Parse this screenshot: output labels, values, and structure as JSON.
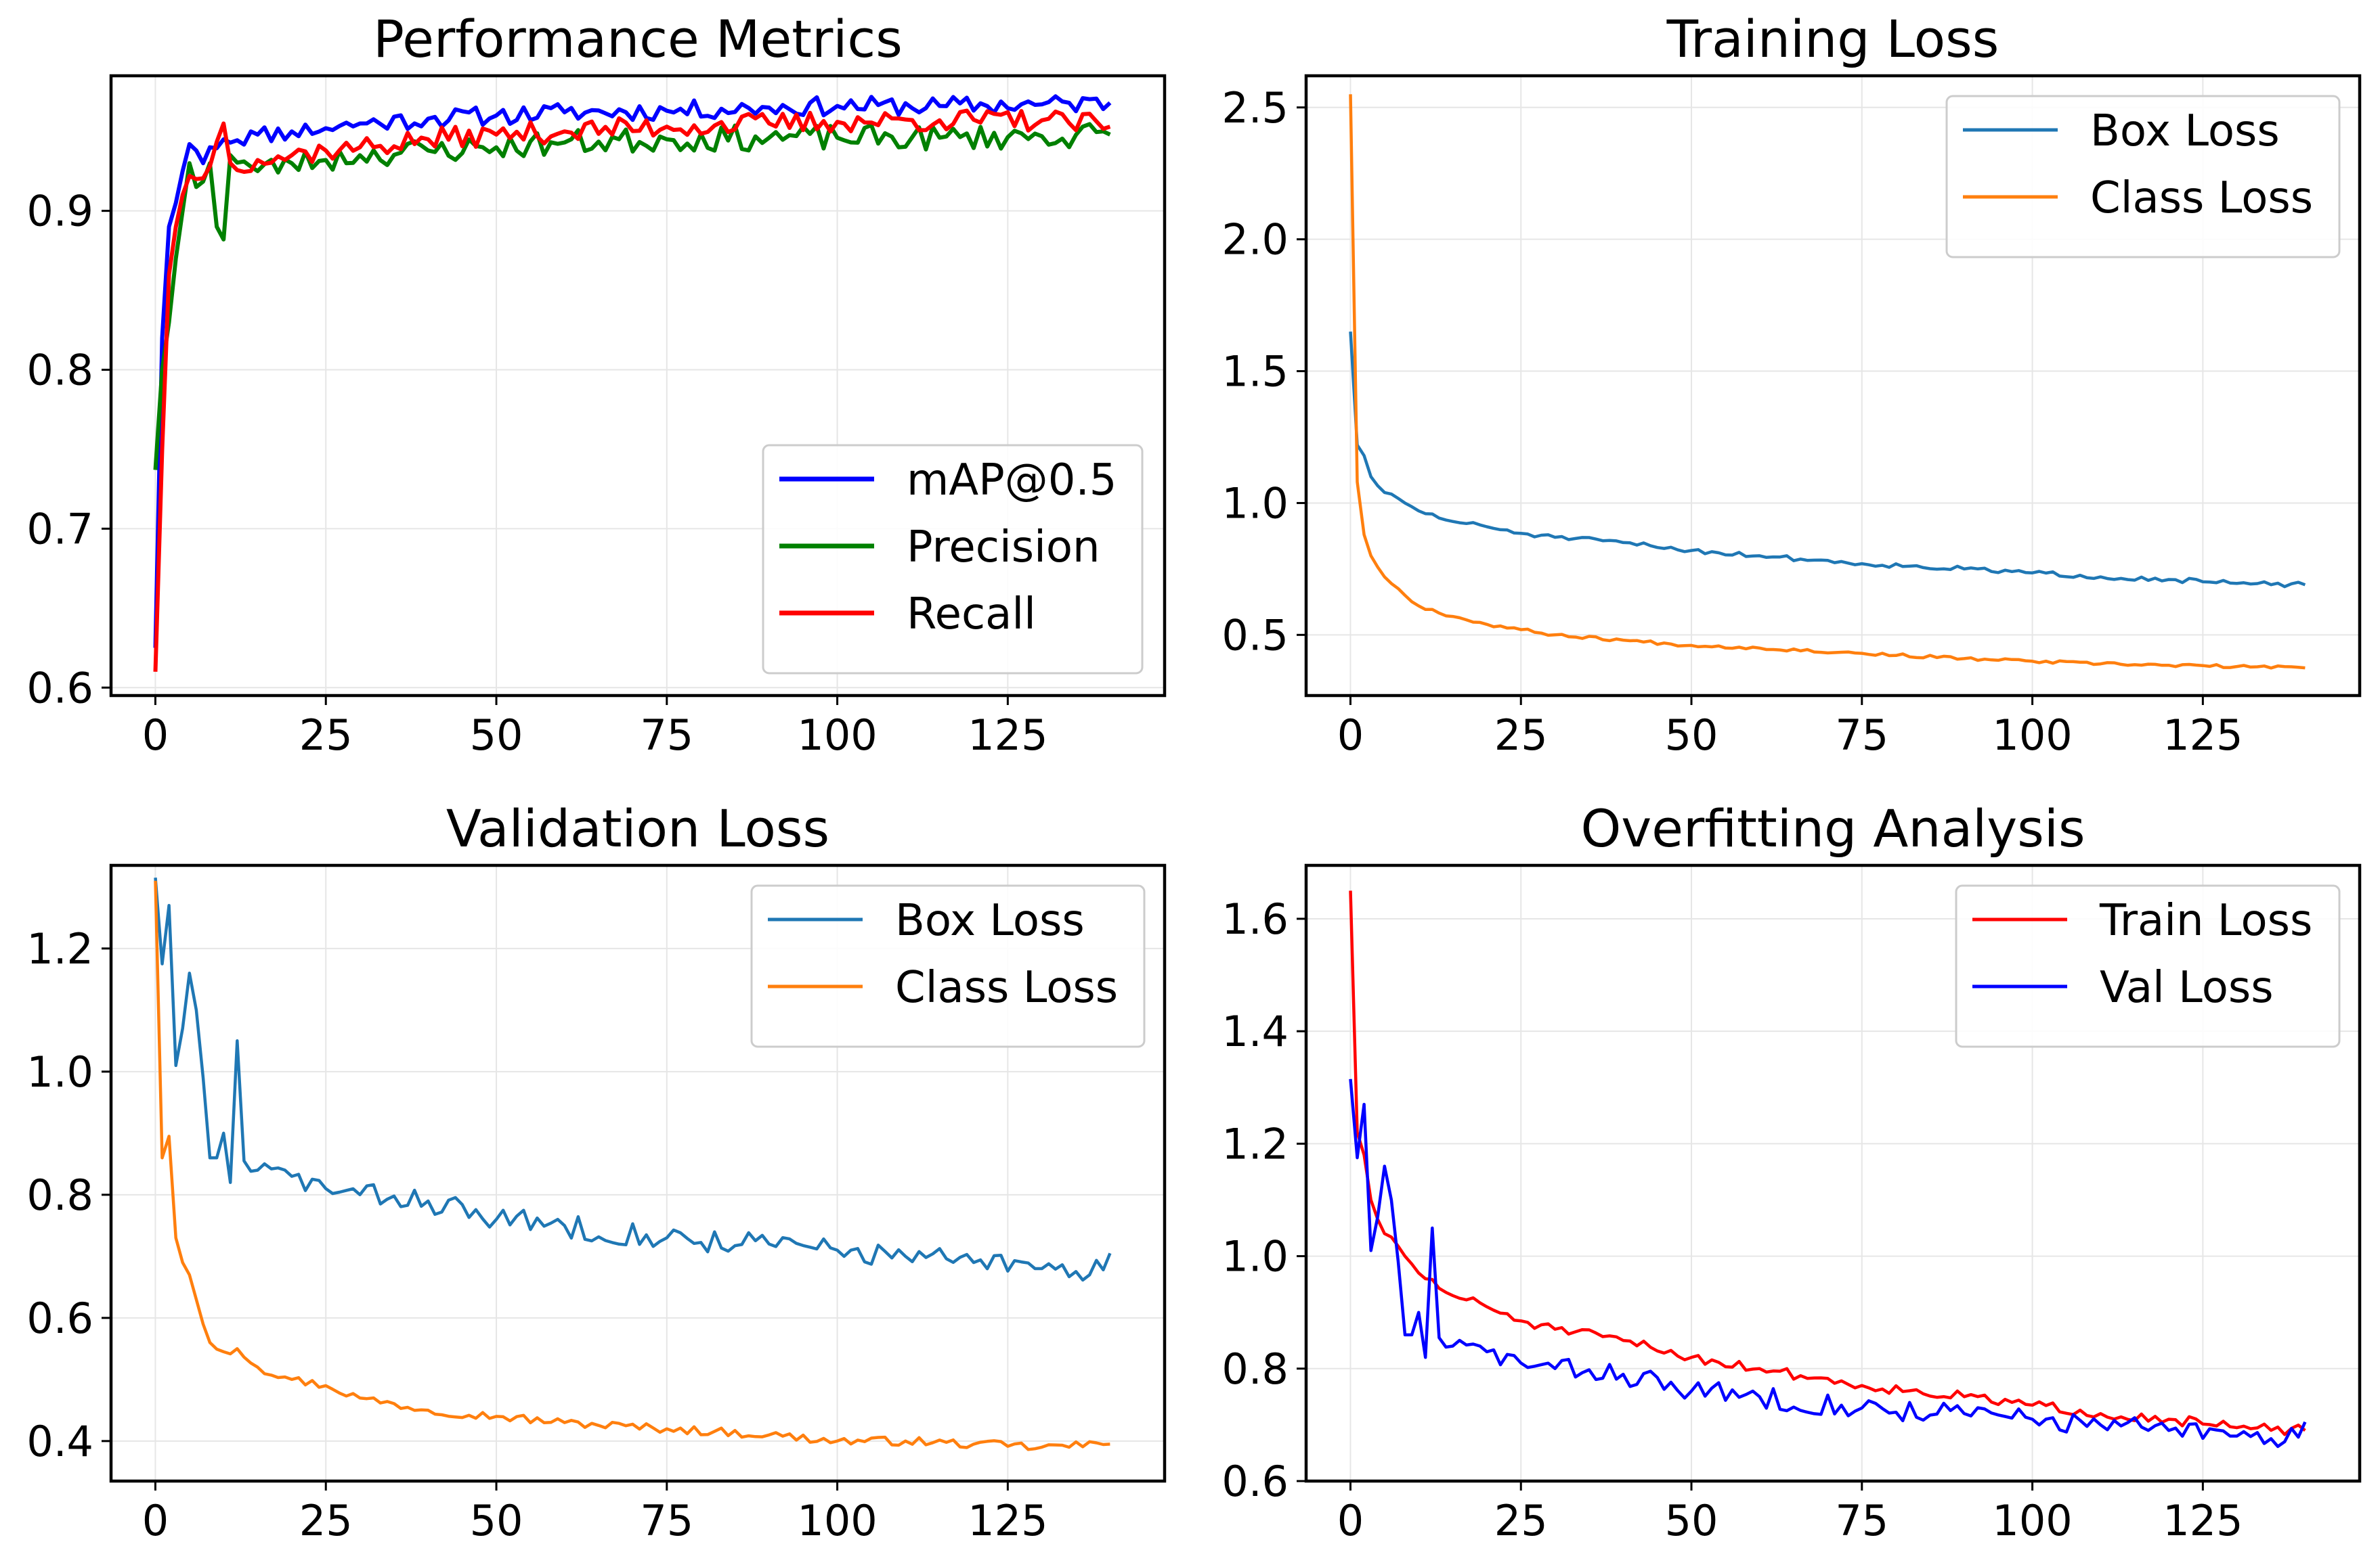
{
  "chart_data": [
    {
      "type": "line",
      "title": "Performance Metrics",
      "xlabel": "",
      "ylabel": "",
      "xlim": [
        -6.5,
        148
      ],
      "ylim": [
        0.595,
        0.985
      ],
      "xticks": [
        0,
        25,
        50,
        75,
        100,
        125
      ],
      "yticks": [
        0.6,
        0.7,
        0.8,
        0.9
      ],
      "tick_labels_y": [
        "0.6",
        "0.7",
        "0.8",
        "0.9"
      ],
      "grid": true,
      "legend_position": "lower-right",
      "series": [
        {
          "name": "mAP@0.5",
          "color": "#0000ff",
          "keypoints": [
            [
              0,
              0.625
            ],
            [
              1,
              0.82
            ],
            [
              2,
              0.89
            ],
            [
              3,
              0.905
            ],
            [
              4,
              0.925
            ],
            [
              5,
              0.942
            ],
            [
              6,
              0.938
            ],
            [
              7,
              0.93
            ],
            [
              8,
              0.94
            ],
            [
              10,
              0.945
            ],
            [
              15,
              0.948
            ],
            [
              20,
              0.95
            ],
            [
              25,
              0.952
            ],
            [
              30,
              0.955
            ],
            [
              40,
              0.958
            ],
            [
              50,
              0.96
            ],
            [
              60,
              0.962
            ],
            [
              75,
              0.963
            ],
            [
              90,
              0.965
            ],
            [
              100,
              0.966
            ],
            [
              115,
              0.966
            ],
            [
              130,
              0.967
            ],
            [
              140,
              0.968
            ]
          ],
          "noise": 0.006,
          "seed": 11
        },
        {
          "name": "Precision",
          "color": "#008000",
          "keypoints": [
            [
              0,
              0.737
            ],
            [
              1,
              0.8
            ],
            [
              2,
              0.83
            ],
            [
              3,
              0.87
            ],
            [
              4,
              0.9
            ],
            [
              5,
              0.93
            ],
            [
              6,
              0.915
            ],
            [
              8,
              0.93
            ],
            [
              9,
              0.89
            ],
            [
              10,
              0.882
            ],
            [
              11,
              0.935
            ],
            [
              15,
              0.925
            ],
            [
              20,
              0.93
            ],
            [
              25,
              0.932
            ],
            [
              30,
              0.935
            ],
            [
              40,
              0.938
            ],
            [
              50,
              0.94
            ],
            [
              60,
              0.943
            ],
            [
              75,
              0.945
            ],
            [
              90,
              0.946
            ],
            [
              100,
              0.946
            ],
            [
              115,
              0.946
            ],
            [
              130,
              0.947
            ],
            [
              140,
              0.948
            ]
          ],
          "noise": 0.008,
          "seed": 23
        },
        {
          "name": "Recall",
          "color": "#ff0000",
          "keypoints": [
            [
              0,
              0.61
            ],
            [
              1,
              0.75
            ],
            [
              2,
              0.86
            ],
            [
              3,
              0.89
            ],
            [
              4,
              0.91
            ],
            [
              5,
              0.922
            ],
            [
              6,
              0.92
            ],
            [
              8,
              0.928
            ],
            [
              10,
              0.955
            ],
            [
              11,
              0.93
            ],
            [
              15,
              0.932
            ],
            [
              20,
              0.935
            ],
            [
              25,
              0.938
            ],
            [
              30,
              0.94
            ],
            [
              40,
              0.945
            ],
            [
              50,
              0.948
            ],
            [
              60,
              0.95
            ],
            [
              75,
              0.953
            ],
            [
              90,
              0.955
            ],
            [
              100,
              0.956
            ],
            [
              115,
              0.957
            ],
            [
              130,
              0.957
            ],
            [
              140,
              0.953
            ]
          ],
          "noise": 0.007,
          "seed": 37
        }
      ]
    },
    {
      "type": "line",
      "title": "Training Loss",
      "xlabel": "",
      "ylabel": "",
      "xlim": [
        -6.5,
        148
      ],
      "ylim": [
        0.27,
        2.62
      ],
      "xticks": [
        0,
        25,
        50,
        75,
        100,
        125
      ],
      "yticks": [
        0.5,
        1.0,
        1.5,
        2.0,
        2.5
      ],
      "tick_labels_y": [
        "0.5",
        "1.0",
        "1.5",
        "2.0",
        "2.5"
      ],
      "grid": true,
      "legend_position": "upper-right",
      "series": [
        {
          "name": "Box Loss",
          "color": "#1f77b4",
          "keypoints": [
            [
              0,
              1.65
            ],
            [
              1,
              1.22
            ],
            [
              2,
              1.18
            ],
            [
              3,
              1.1
            ],
            [
              5,
              1.04
            ],
            [
              8,
              1.0
            ],
            [
              10,
              0.97
            ],
            [
              15,
              0.93
            ],
            [
              20,
              0.91
            ],
            [
              25,
              0.885
            ],
            [
              30,
              0.87
            ],
            [
              40,
              0.85
            ],
            [
              50,
              0.82
            ],
            [
              60,
              0.8
            ],
            [
              75,
              0.77
            ],
            [
              90,
              0.75
            ],
            [
              100,
              0.735
            ],
            [
              110,
              0.72
            ],
            [
              120,
              0.71
            ],
            [
              130,
              0.695
            ],
            [
              140,
              0.69
            ]
          ],
          "noise": 0.009,
          "seed": 51
        },
        {
          "name": "Class Loss",
          "color": "#ff7f0e",
          "keypoints": [
            [
              0,
              2.55
            ],
            [
              1,
              1.08
            ],
            [
              2,
              0.88
            ],
            [
              3,
              0.8
            ],
            [
              5,
              0.72
            ],
            [
              8,
              0.65
            ],
            [
              10,
              0.61
            ],
            [
              15,
              0.57
            ],
            [
              20,
              0.54
            ],
            [
              25,
              0.52
            ],
            [
              30,
              0.5
            ],
            [
              40,
              0.48
            ],
            [
              50,
              0.46
            ],
            [
              60,
              0.45
            ],
            [
              75,
              0.43
            ],
            [
              90,
              0.41
            ],
            [
              100,
              0.4
            ],
            [
              110,
              0.39
            ],
            [
              120,
              0.385
            ],
            [
              130,
              0.38
            ],
            [
              140,
              0.375
            ]
          ],
          "noise": 0.006,
          "seed": 67
        }
      ]
    },
    {
      "type": "line",
      "title": "Validation Loss",
      "xlabel": "",
      "ylabel": "",
      "xlim": [
        -6.5,
        148
      ],
      "ylim": [
        0.335,
        1.335
      ],
      "xticks": [
        0,
        25,
        50,
        75,
        100,
        125
      ],
      "yticks": [
        0.4,
        0.6,
        0.8,
        1.0,
        1.2
      ],
      "tick_labels_y": [
        "0.4",
        "0.6",
        "0.8",
        "1.0",
        "1.2"
      ],
      "grid": true,
      "legend_position": "upper-right",
      "series": [
        {
          "name": "Box Loss",
          "color": "#1f77b4",
          "keypoints": [
            [
              0,
              1.315
            ],
            [
              1,
              1.175
            ],
            [
              2,
              1.27
            ],
            [
              3,
              1.01
            ],
            [
              4,
              1.07
            ],
            [
              5,
              1.16
            ],
            [
              6,
              1.1
            ],
            [
              7,
              0.99
            ],
            [
              8,
              0.86
            ],
            [
              9,
              0.86
            ],
            [
              10,
              0.9
            ],
            [
              11,
              0.82
            ],
            [
              12,
              1.05
            ],
            [
              13,
              0.855
            ],
            [
              15,
              0.84
            ],
            [
              20,
              0.83
            ],
            [
              25,
              0.81
            ],
            [
              30,
              0.8
            ],
            [
              40,
              0.79
            ],
            [
              50,
              0.76
            ],
            [
              60,
              0.75
            ],
            [
              75,
              0.73
            ],
            [
              90,
              0.72
            ],
            [
              100,
              0.71
            ],
            [
              110,
              0.7
            ],
            [
              120,
              0.69
            ],
            [
              130,
              0.68
            ],
            [
              137,
              0.67
            ],
            [
              140,
              0.705
            ]
          ],
          "noise": 0.02,
          "seed": 83
        },
        {
          "name": "Class Loss",
          "color": "#ff7f0e",
          "keypoints": [
            [
              0,
              1.31
            ],
            [
              1,
              0.86
            ],
            [
              2,
              0.895
            ],
            [
              3,
              0.73
            ],
            [
              4,
              0.69
            ],
            [
              5,
              0.67
            ],
            [
              6,
              0.63
            ],
            [
              7,
              0.59
            ],
            [
              8,
              0.56
            ],
            [
              10,
              0.545
            ],
            [
              12,
              0.55
            ],
            [
              15,
              0.52
            ],
            [
              20,
              0.5
            ],
            [
              25,
              0.49
            ],
            [
              30,
              0.47
            ],
            [
              40,
              0.45
            ],
            [
              50,
              0.44
            ],
            [
              60,
              0.43
            ],
            [
              75,
              0.42
            ],
            [
              90,
              0.41
            ],
            [
              100,
              0.4
            ],
            [
              110,
              0.4
            ],
            [
              120,
              0.395
            ],
            [
              130,
              0.39
            ],
            [
              140,
              0.395
            ]
          ],
          "noise": 0.007,
          "seed": 97
        }
      ]
    },
    {
      "type": "line",
      "title": "Overfitting Analysis",
      "xlabel": "",
      "ylabel": "",
      "xlim": [
        -6.5,
        148
      ],
      "ylim": [
        0.6,
        1.695
      ],
      "xticks": [
        0,
        25,
        50,
        75,
        100,
        125
      ],
      "yticks": [
        0.6,
        0.8,
        1.0,
        1.2,
        1.4,
        1.6
      ],
      "tick_labels_y": [
        "0.6",
        "0.8",
        "1.0",
        "1.2",
        "1.4",
        "1.6"
      ],
      "grid": true,
      "legend_position": "upper-right",
      "series": [
        {
          "name": "Train Loss",
          "color": "#ff0000",
          "keypoints": [
            [
              0,
              1.65
            ],
            [
              1,
              1.22
            ],
            [
              2,
              1.18
            ],
            [
              3,
              1.1
            ],
            [
              5,
              1.04
            ],
            [
              8,
              1.0
            ],
            [
              10,
              0.97
            ],
            [
              15,
              0.93
            ],
            [
              20,
              0.91
            ],
            [
              25,
              0.885
            ],
            [
              30,
              0.87
            ],
            [
              40,
              0.85
            ],
            [
              50,
              0.82
            ],
            [
              60,
              0.8
            ],
            [
              75,
              0.77
            ],
            [
              90,
              0.75
            ],
            [
              100,
              0.735
            ],
            [
              110,
              0.72
            ],
            [
              120,
              0.71
            ],
            [
              130,
              0.695
            ],
            [
              140,
              0.69
            ]
          ],
          "noise": 0.009,
          "seed": 51
        },
        {
          "name": "Val Loss",
          "color": "#0000ff",
          "keypoints": [
            [
              0,
              1.315
            ],
            [
              1,
              1.175
            ],
            [
              2,
              1.27
            ],
            [
              3,
              1.01
            ],
            [
              4,
              1.07
            ],
            [
              5,
              1.16
            ],
            [
              6,
              1.1
            ],
            [
              7,
              0.99
            ],
            [
              8,
              0.86
            ],
            [
              9,
              0.86
            ],
            [
              10,
              0.9
            ],
            [
              11,
              0.82
            ],
            [
              12,
              1.05
            ],
            [
              13,
              0.855
            ],
            [
              15,
              0.84
            ],
            [
              20,
              0.83
            ],
            [
              25,
              0.81
            ],
            [
              30,
              0.8
            ],
            [
              40,
              0.79
            ],
            [
              50,
              0.76
            ],
            [
              60,
              0.75
            ],
            [
              75,
              0.73
            ],
            [
              90,
              0.72
            ],
            [
              100,
              0.71
            ],
            [
              110,
              0.7
            ],
            [
              120,
              0.69
            ],
            [
              130,
              0.68
            ],
            [
              137,
              0.67
            ],
            [
              140,
              0.705
            ]
          ],
          "noise": 0.02,
          "seed": 83
        }
      ]
    }
  ]
}
